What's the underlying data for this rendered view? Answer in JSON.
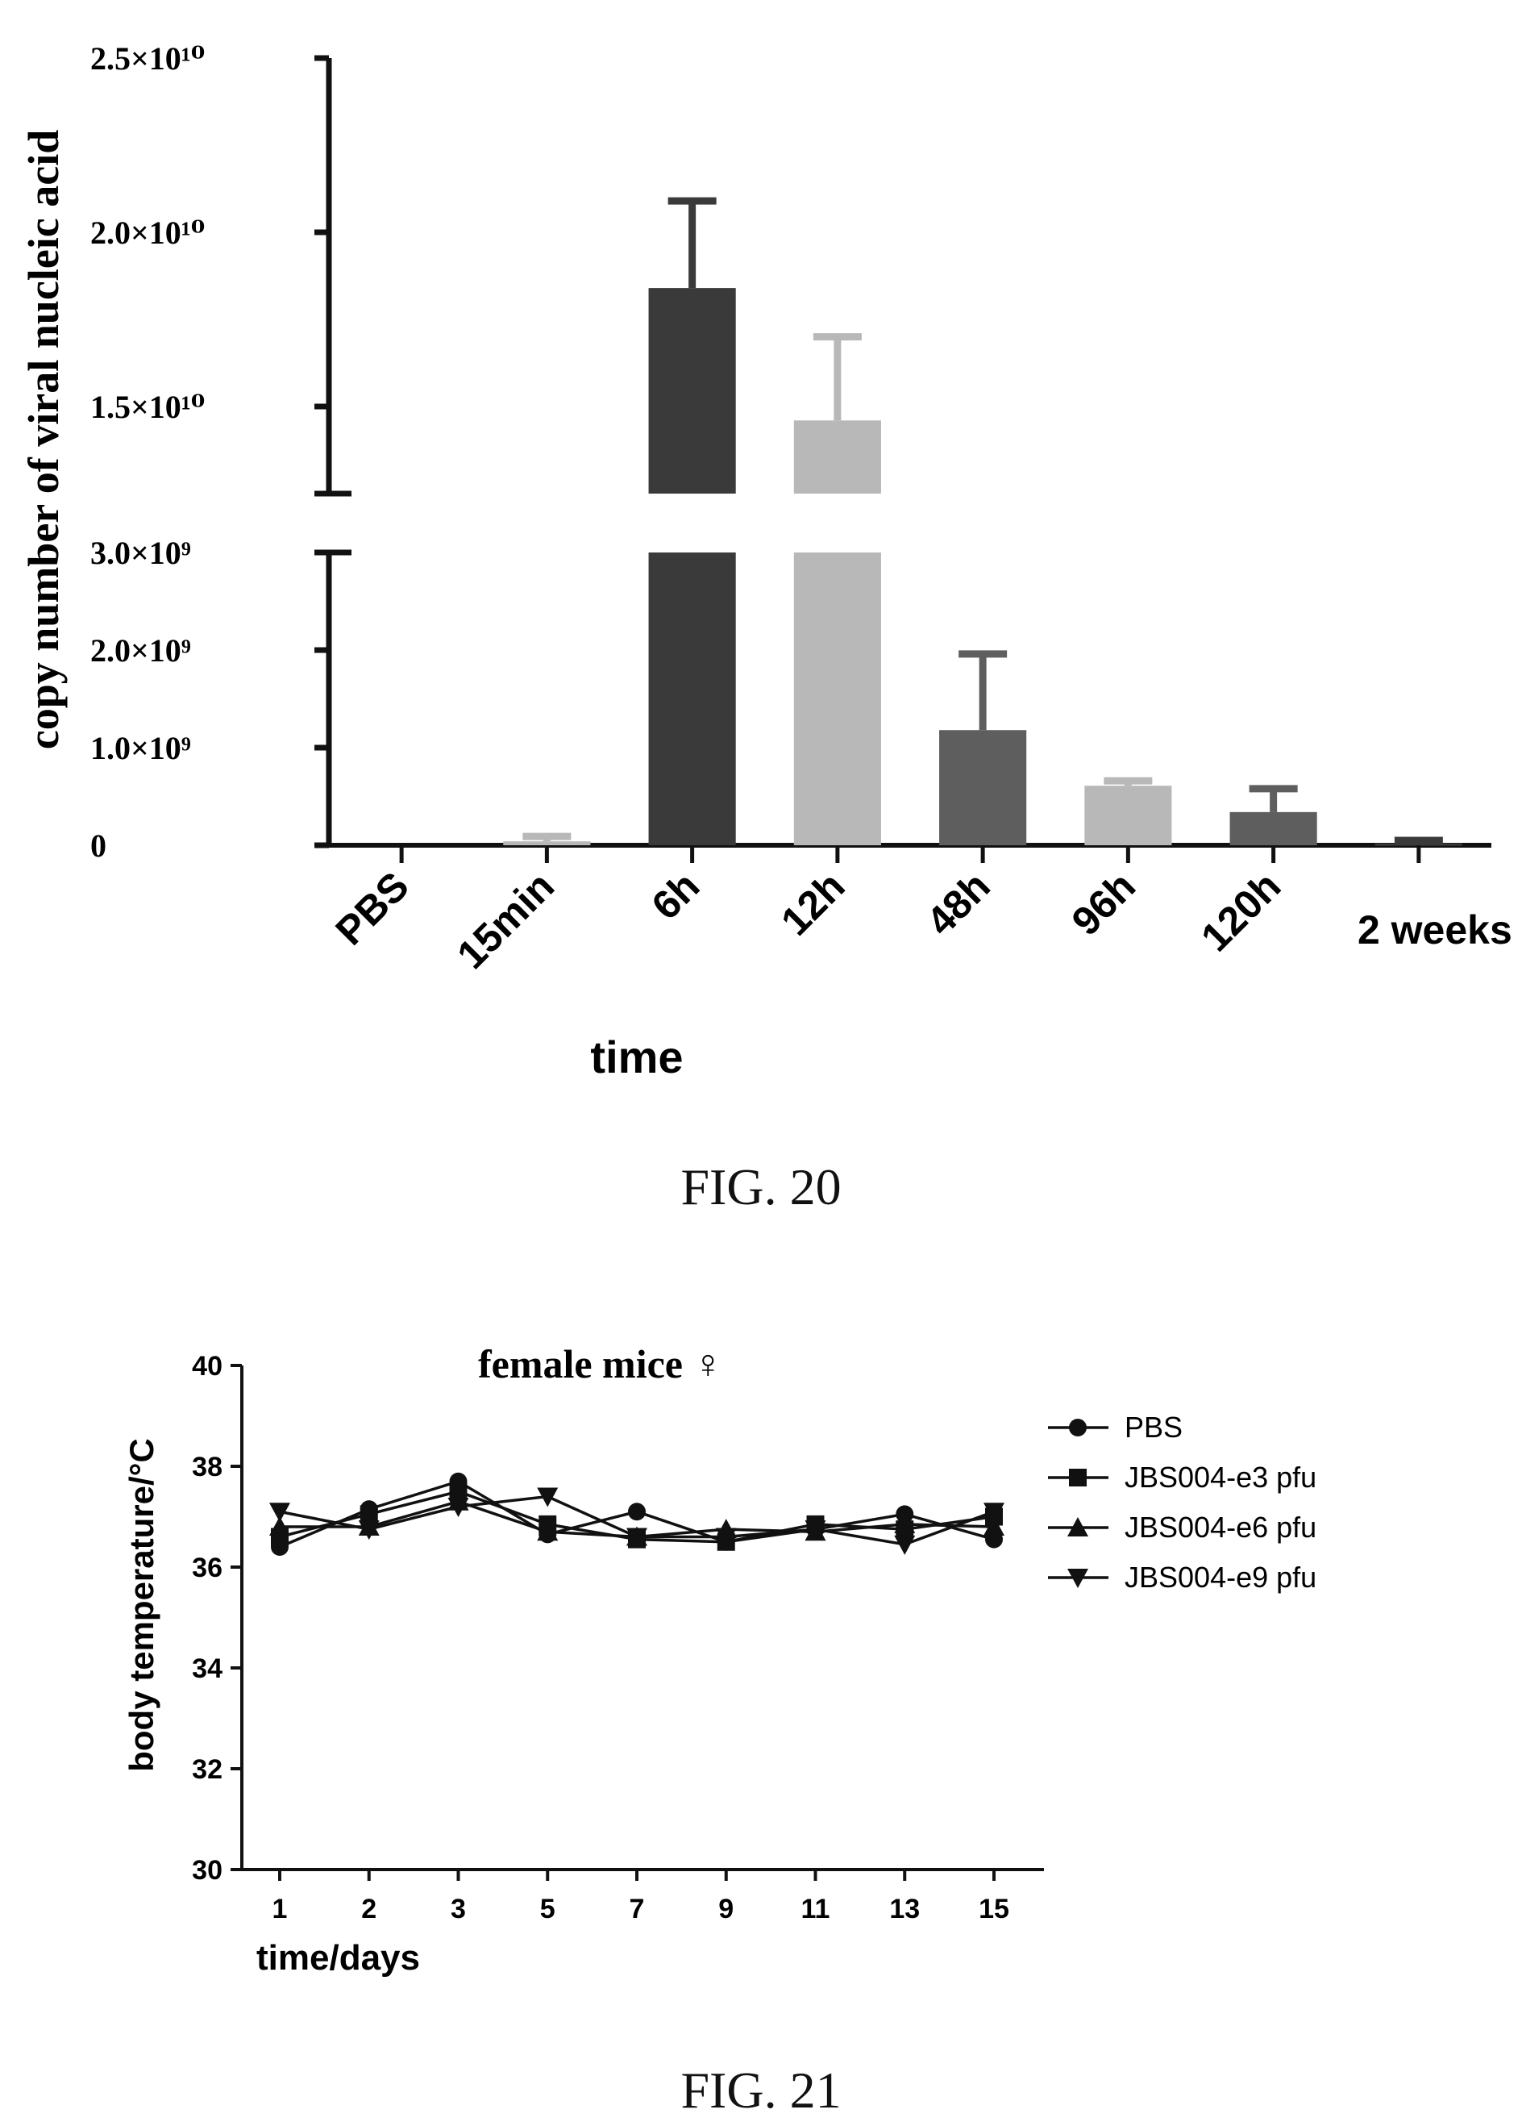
{
  "figures": [
    {
      "caption": "FIG. 20"
    },
    {
      "caption": "FIG. 21"
    }
  ],
  "chart_data": [
    {
      "type": "bar",
      "title": "",
      "xlabel": "time",
      "ylabel": "copy number of viral nucleic acid",
      "categories": [
        "PBS",
        "15min",
        "6h",
        "12h",
        "48h",
        "96h",
        "120h",
        "2 weeks"
      ],
      "values": [
        0,
        40000000,
        18400000000,
        14600000000,
        1180000000,
        610000000,
        340000000,
        20000000
      ],
      "errors": [
        0,
        50000000,
        2500000000,
        2400000000,
        780000000,
        50000000,
        240000000,
        30000000
      ],
      "bar_colors": [
        "#3a3a3a",
        "#b8b8b8",
        "#3a3a3a",
        "#b8b8b8",
        "#5e5e5e",
        "#b8b8b8",
        "#5e5e5e",
        "#3a3a3a"
      ],
      "axis_break": {
        "lower": [
          0,
          3000000000
        ],
        "upper": [
          12500000000,
          25000000000
        ]
      },
      "lower_ticks": [
        0,
        1000000000,
        2000000000,
        3000000000
      ],
      "lower_tick_labels": [
        "0",
        "1.0×10⁹",
        "2.0×10⁹",
        "3.0×10⁹"
      ],
      "upper_ticks": [
        15000000000,
        20000000000,
        25000000000
      ],
      "upper_tick_labels": [
        "1.5×10¹⁰",
        "2.0×10¹⁰",
        "2.5×10¹⁰"
      ]
    },
    {
      "type": "line",
      "title": "female mice ♀",
      "xlabel": "time/days",
      "ylabel": "body temperature/°C",
      "x": [
        1,
        2,
        3,
        5,
        7,
        9,
        11,
        13,
        15
      ],
      "ylim": [
        30,
        40
      ],
      "yticks": [
        30,
        32,
        34,
        36,
        38,
        40
      ],
      "legend_position": "right",
      "series": [
        {
          "name": "PBS",
          "marker": "circle",
          "values": [
            36.4,
            37.15,
            37.7,
            36.65,
            37.1,
            36.5,
            36.75,
            37.05,
            36.55
          ]
        },
        {
          "name": "JBS004-e3 pfu",
          "marker": "square",
          "values": [
            36.6,
            37.05,
            37.5,
            36.85,
            36.55,
            36.5,
            36.85,
            36.75,
            37.0
          ]
        },
        {
          "name": "JBS004-e6 pfu",
          "marker": "triangle-up",
          "values": [
            36.8,
            36.8,
            37.3,
            36.7,
            36.6,
            36.75,
            36.7,
            36.85,
            36.8
          ]
        },
        {
          "name": "JBS004-e9 pfu",
          "marker": "triangle-down",
          "values": [
            37.1,
            36.75,
            37.2,
            37.4,
            36.6,
            36.6,
            36.75,
            36.45,
            37.1
          ]
        }
      ]
    }
  ]
}
